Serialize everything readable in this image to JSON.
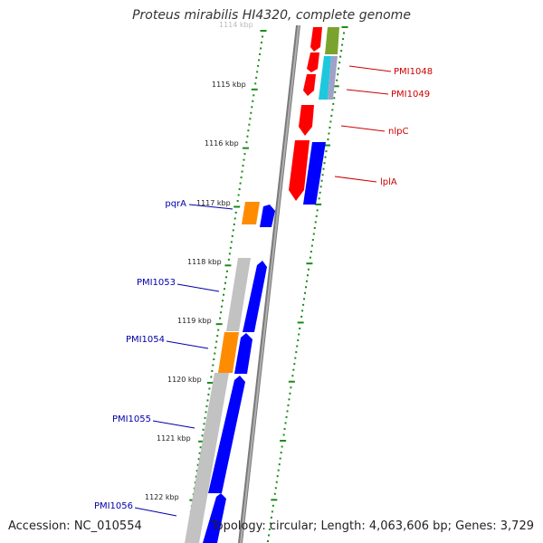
{
  "title": "Proteus mirabilis HI4320, complete genome",
  "footer": {
    "accession": "Accession: NC_010554",
    "summary": "Topology: circular; Length: 4,063,606 bp; Genes: 3,729"
  },
  "colors": {
    "backbone": "#808080",
    "tick": "#1b8a1b",
    "cds_forward": "#0000ff",
    "cds_reverse": "#ff0000",
    "gene_grey": "#b4b4b4",
    "gene_orange": "#ff8c00",
    "gene_green": "#7aa32e",
    "gene_cyan": "#1ec8dc",
    "label_forward": "#0000aa",
    "label_reverse": "#cc0000"
  },
  "kbp_labels": [
    "1114 kbp",
    "1115 kbp",
    "1116 kbp",
    "1117 kbp",
    "1118 kbp",
    "1119 kbp",
    "1120 kbp",
    "1121 kbp",
    "1122 kbp"
  ],
  "gene_labels": [
    {
      "name": "PMI1048",
      "side": "right"
    },
    {
      "name": "PMI1049",
      "side": "right"
    },
    {
      "name": "nlpC",
      "side": "right"
    },
    {
      "name": "lplA",
      "side": "right"
    },
    {
      "name": "pqrA",
      "side": "left"
    },
    {
      "name": "PMI1053",
      "side": "left"
    },
    {
      "name": "PMI1054",
      "side": "left"
    },
    {
      "name": "PMI1055",
      "side": "left"
    },
    {
      "name": "PMI1056",
      "side": "left"
    }
  ]
}
